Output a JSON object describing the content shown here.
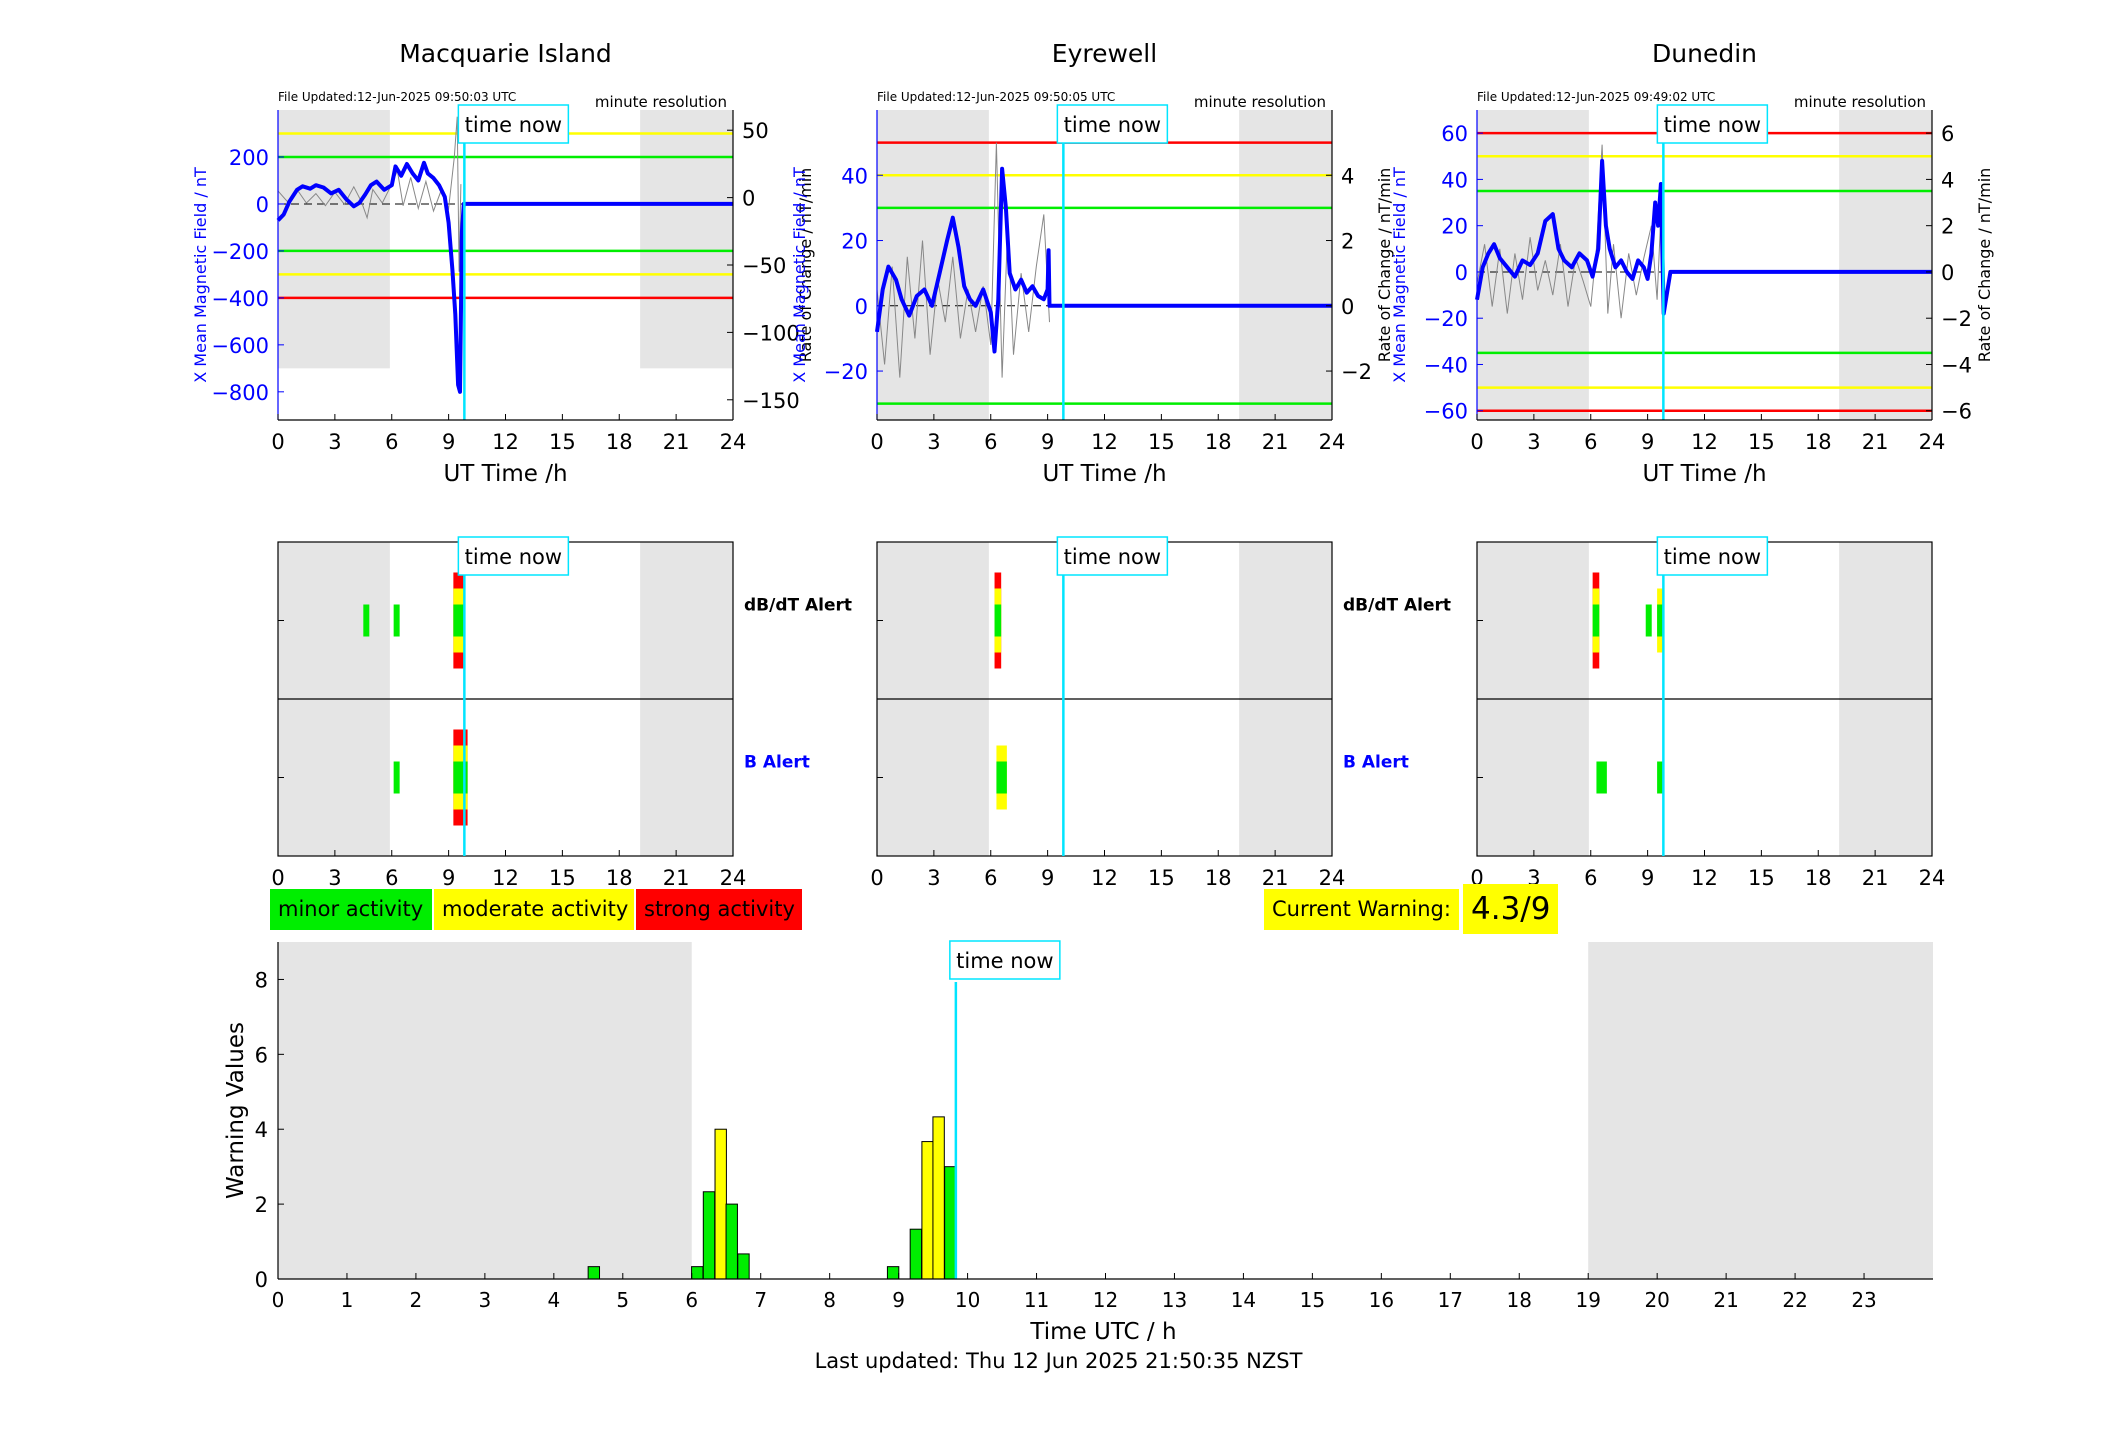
{
  "colors": {
    "minor": "#00ee00",
    "moderate": "#ffff00",
    "strong": "#ff0000",
    "now_line": "#00e5ff",
    "field_line": "#0000ff",
    "night_shade": "#e5e5e5",
    "b_alert_label": "#0000ff"
  },
  "legend": {
    "minor": "minor activity",
    "moderate": "moderate activity",
    "strong": "strong activity"
  },
  "current_warning": {
    "label": "Current Warning:",
    "value": "4.3/9"
  },
  "last_updated": "Last updated: Thu 12 Jun 2025 21:50:35 NZST",
  "time_now_label": "time now",
  "time_now_h": 9.83,
  "chart_data": [
    {
      "type": "line",
      "title": "Macquarie Island",
      "file_updated": "File Updated:12-Jun-2025 09:50:03 UTC",
      "resolution": "minute resolution",
      "xlabel": "UT Time /h",
      "ylabel_left": "X Mean Magnetic Field / nT",
      "ylabel_right": "Rate of Change / nT/min",
      "xlim": [
        0,
        24
      ],
      "xticks": [
        0,
        3,
        6,
        9,
        12,
        15,
        18,
        21,
        24
      ],
      "ylim_left": [
        -920,
        400
      ],
      "yticks_left": [
        200,
        0,
        -200,
        -400,
        -600,
        -800
      ],
      "ylim_right": [
        -165,
        65
      ],
      "yticks_right": [
        50,
        0,
        -50,
        -100,
        -150
      ],
      "thresholds": [
        {
          "value": 300,
          "color": "#ffff00"
        },
        {
          "value": 200,
          "color": "#00ee00"
        },
        {
          "value": -200,
          "color": "#00ee00"
        },
        {
          "value": -300,
          "color": "#ffff00"
        },
        {
          "value": -400,
          "color": "#ff0000"
        }
      ],
      "night": [
        [
          0,
          5.9
        ],
        [
          19.1,
          24
        ]
      ],
      "night_low": -700,
      "field_x": [
        0,
        0.3,
        0.6,
        1.0,
        1.3,
        1.7,
        2.0,
        2.4,
        2.8,
        3.2,
        3.6,
        4.0,
        4.3,
        4.6,
        4.9,
        5.2,
        5.6,
        6.0,
        6.2,
        6.5,
        6.8,
        7.1,
        7.4,
        7.7,
        7.9,
        8.2,
        8.5,
        8.8,
        9.0,
        9.2,
        9.35,
        9.5,
        9.6,
        9.7,
        9.8,
        10.2,
        12,
        15,
        18,
        21,
        24
      ],
      "field_y": [
        -70,
        -45,
        10,
        60,
        75,
        65,
        80,
        70,
        45,
        60,
        20,
        -10,
        5,
        40,
        80,
        95,
        60,
        80,
        160,
        120,
        170,
        130,
        100,
        175,
        130,
        110,
        80,
        30,
        -80,
        -280,
        -470,
        -770,
        -800,
        -120,
        0,
        0,
        0,
        0,
        0,
        0,
        0
      ],
      "rate_x": [
        0,
        0.5,
        1.0,
        1.5,
        2.0,
        2.5,
        3.0,
        3.5,
        4.0,
        4.4,
        4.7,
        5.0,
        5.5,
        6.0,
        6.3,
        6.6,
        7.0,
        7.4,
        7.8,
        8.2,
        8.6,
        9.0,
        9.3,
        9.45,
        9.55,
        9.65
      ],
      "rate_y": [
        5,
        -3,
        6,
        -4,
        3,
        -6,
        4,
        -5,
        8,
        -3,
        -15,
        6,
        -4,
        10,
        20,
        -6,
        15,
        -8,
        12,
        -10,
        5,
        -8,
        30,
        60,
        -55,
        10
      ],
      "alerts": {
        "dbdt_label": "dB/dT Alert",
        "b_label": "B Alert",
        "dbdt": [
          {
            "x": 4.5,
            "w": 0.3,
            "level": "minor"
          },
          {
            "x": 6.1,
            "w": 0.3,
            "level": "minor"
          },
          {
            "x": 9.25,
            "w": 0.6,
            "level": "strong"
          }
        ],
        "b": [
          {
            "x": 6.1,
            "w": 0.3,
            "level": "minor"
          },
          {
            "x": 9.25,
            "w": 0.75,
            "level": "strong"
          }
        ]
      }
    },
    {
      "type": "line",
      "title": "Eyrewell",
      "file_updated": "File Updated:12-Jun-2025 09:50:05 UTC",
      "resolution": "minute resolution",
      "xlabel": "UT Time /h",
      "ylabel_left": "X Mean Magnetic Field / nT",
      "ylabel_right": "Rate of Change / nT/min",
      "xlim": [
        0,
        24
      ],
      "xticks": [
        0,
        3,
        6,
        9,
        12,
        15,
        18,
        21,
        24
      ],
      "ylim_left": [
        -35,
        60
      ],
      "yticks_left": [
        40,
        20,
        0,
        -20
      ],
      "ylim_right": [
        -3.5,
        6.0
      ],
      "yticks_right": [
        4,
        2,
        0,
        -2
      ],
      "thresholds": [
        {
          "value": 50,
          "color": "#ff0000"
        },
        {
          "value": 40,
          "color": "#ffff00"
        },
        {
          "value": 30,
          "color": "#00ee00"
        },
        {
          "value": -30,
          "color": "#00ee00"
        }
      ],
      "night": [
        [
          0,
          5.9
        ],
        [
          19.1,
          24
        ]
      ],
      "night_low": -35,
      "field_x": [
        0,
        0.3,
        0.6,
        1.0,
        1.3,
        1.7,
        2.1,
        2.5,
        2.9,
        3.3,
        3.7,
        4.0,
        4.3,
        4.6,
        4.9,
        5.2,
        5.6,
        6.0,
        6.2,
        6.4,
        6.6,
        6.8,
        7.0,
        7.3,
        7.6,
        7.9,
        8.2,
        8.5,
        8.8,
        9.0,
        9.05,
        9.1,
        9.6,
        12,
        15,
        18,
        21,
        24
      ],
      "field_y": [
        -8,
        5,
        12,
        8,
        2,
        -3,
        3,
        5,
        0,
        10,
        20,
        27,
        18,
        6,
        2,
        0,
        5,
        -2,
        -14,
        2,
        42,
        30,
        10,
        5,
        8,
        4,
        6,
        3,
        2,
        5,
        17,
        0,
        0,
        0,
        0,
        0,
        0,
        0
      ],
      "rate_x": [
        0,
        0.4,
        0.8,
        1.2,
        1.6,
        2.0,
        2.4,
        2.8,
        3.2,
        3.6,
        4.0,
        4.4,
        4.8,
        5.2,
        5.6,
        6.0,
        6.3,
        6.6,
        6.9,
        7.2,
        7.6,
        8.0,
        8.4,
        8.8,
        9.1
      ],
      "rate_y": [
        0.5,
        -1.8,
        1.2,
        -2.2,
        1.5,
        -1.0,
        2.0,
        -1.5,
        0.8,
        -0.5,
        1.5,
        -1.0,
        0.5,
        -0.8,
        0.6,
        -1.2,
        5.0,
        -2.2,
        2.5,
        -1.5,
        1.0,
        -0.8,
        1.2,
        2.8,
        -0.5
      ],
      "alerts": {
        "dbdt_label": "dB/dT Alert",
        "b_label": "B Alert",
        "dbdt": [
          {
            "x": 6.2,
            "w": 0.35,
            "level": "strong"
          }
        ],
        "b": [
          {
            "x": 6.3,
            "w": 0.55,
            "level": "moderate"
          }
        ]
      }
    },
    {
      "type": "line",
      "title": "Dunedin",
      "file_updated": "File Updated:12-Jun-2025 09:49:02 UTC",
      "resolution": "minute resolution",
      "xlabel": "UT Time /h",
      "ylabel_left": "X Mean Magnetic Field / nT",
      "ylabel_right": "Rate of Change / nT/min",
      "xlim": [
        0,
        24
      ],
      "xticks": [
        0,
        3,
        6,
        9,
        12,
        15,
        18,
        21,
        24
      ],
      "ylim_left": [
        -64,
        70
      ],
      "yticks_left": [
        60,
        40,
        20,
        0,
        -20,
        -40,
        -60
      ],
      "ylim_right": [
        -6.4,
        7.0
      ],
      "yticks_right": [
        6,
        4,
        2,
        0,
        -2,
        -4,
        -6
      ],
      "thresholds": [
        {
          "value": 60,
          "color": "#ff0000"
        },
        {
          "value": 50,
          "color": "#ffff00"
        },
        {
          "value": 35,
          "color": "#00ee00"
        },
        {
          "value": -35,
          "color": "#00ee00"
        },
        {
          "value": -50,
          "color": "#ffff00"
        },
        {
          "value": -60,
          "color": "#ff0000"
        }
      ],
      "night": [
        [
          0,
          5.9
        ],
        [
          19.1,
          24
        ]
      ],
      "night_low": -64,
      "field_x": [
        0,
        0.3,
        0.6,
        0.9,
        1.2,
        1.6,
        2.0,
        2.4,
        2.8,
        3.2,
        3.6,
        4.0,
        4.3,
        4.6,
        5.0,
        5.4,
        5.8,
        6.1,
        6.4,
        6.6,
        6.8,
        7.0,
        7.3,
        7.6,
        7.9,
        8.2,
        8.5,
        8.8,
        9.0,
        9.2,
        9.4,
        9.55,
        9.7,
        9.85,
        10.2,
        12,
        15,
        18,
        21,
        24
      ],
      "field_y": [
        -12,
        2,
        8,
        12,
        6,
        2,
        -2,
        5,
        3,
        8,
        22,
        25,
        10,
        5,
        2,
        8,
        5,
        -2,
        10,
        48,
        20,
        10,
        2,
        5,
        0,
        -3,
        5,
        2,
        -3,
        8,
        30,
        20,
        38,
        -18,
        0,
        0,
        0,
        0,
        0,
        0
      ],
      "rate_x": [
        0,
        0.4,
        0.8,
        1.2,
        1.6,
        2.0,
        2.4,
        2.8,
        3.2,
        3.6,
        4.0,
        4.4,
        4.8,
        5.2,
        5.6,
        6.0,
        6.3,
        6.6,
        6.9,
        7.2,
        7.6,
        8.0,
        8.4,
        8.8,
        9.2,
        9.5,
        9.7,
        9.85
      ],
      "rate_y": [
        -0.5,
        1.2,
        -1.5,
        1.0,
        -1.8,
        0.8,
        -1.2,
        1.5,
        -0.8,
        0.5,
        -1.0,
        1.2,
        -1.5,
        0.6,
        -0.4,
        -1.5,
        1.0,
        5.5,
        -1.8,
        1.2,
        -2.0,
        0.8,
        -1.0,
        0.6,
        2.0,
        -1.2,
        2.5,
        -5.0
      ],
      "alerts": {
        "dbdt_label": "dB/dT Alert",
        "b_label": "B Alert",
        "dbdt": [
          {
            "x": 6.1,
            "w": 0.35,
            "level": "strong"
          },
          {
            "x": 8.9,
            "w": 0.3,
            "level": "minor"
          },
          {
            "x": 9.5,
            "w": 0.3,
            "level": "moderate"
          }
        ],
        "b": [
          {
            "x": 6.3,
            "w": 0.55,
            "level": "minor"
          },
          {
            "x": 9.5,
            "w": 0.3,
            "level": "minor"
          }
        ]
      }
    },
    {
      "type": "bar",
      "xlabel": "Time UTC / h",
      "ylabel": "Warning Values",
      "xlim": [
        0,
        24
      ],
      "xticks": [
        0,
        1,
        2,
        3,
        4,
        5,
        6,
        7,
        8,
        9,
        10,
        11,
        12,
        13,
        14,
        15,
        16,
        17,
        18,
        19,
        20,
        21,
        22,
        23
      ],
      "ylim": [
        0,
        9
      ],
      "yticks": [
        0,
        2,
        4,
        6,
        8
      ],
      "night": [
        [
          0,
          6.0
        ],
        [
          19.0,
          24
        ]
      ],
      "bar_width_h": 0.165,
      "bars": [
        {
          "x": 4.58,
          "value": 0.33,
          "level": "minor"
        },
        {
          "x": 6.08,
          "value": 0.33,
          "level": "minor"
        },
        {
          "x": 6.25,
          "value": 2.33,
          "level": "minor"
        },
        {
          "x": 6.42,
          "value": 4.0,
          "level": "moderate"
        },
        {
          "x": 6.58,
          "value": 2.0,
          "level": "minor"
        },
        {
          "x": 6.75,
          "value": 0.67,
          "level": "minor"
        },
        {
          "x": 8.92,
          "value": 0.33,
          "level": "minor"
        },
        {
          "x": 9.25,
          "value": 1.33,
          "level": "minor"
        },
        {
          "x": 9.42,
          "value": 3.67,
          "level": "moderate"
        },
        {
          "x": 9.58,
          "value": 4.33,
          "level": "moderate"
        },
        {
          "x": 9.75,
          "value": 3.0,
          "level": "minor"
        }
      ]
    }
  ]
}
